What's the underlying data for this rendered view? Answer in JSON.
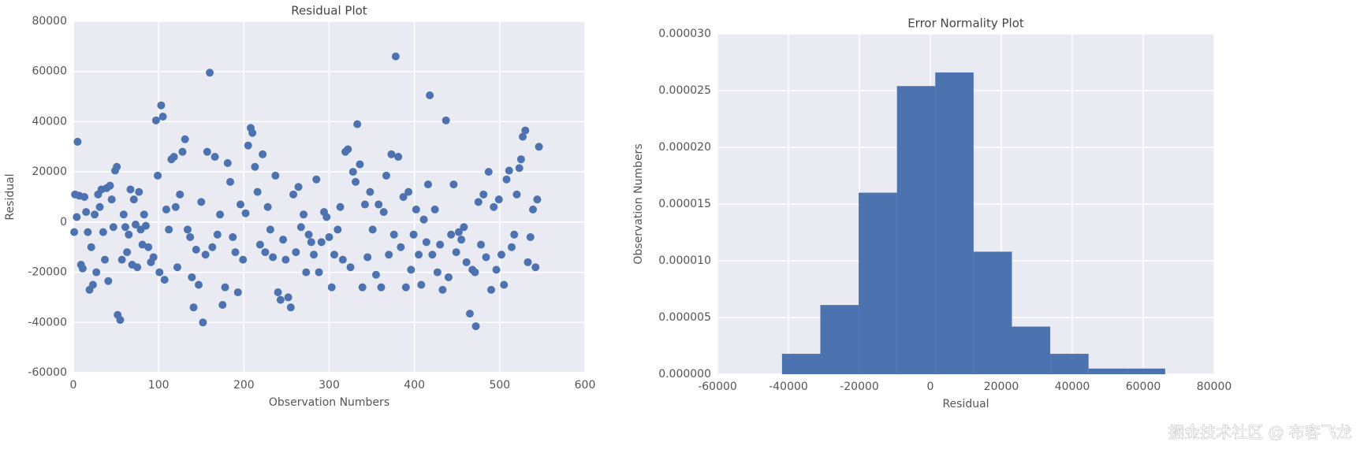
{
  "chart_data": [
    {
      "type": "scatter",
      "title": "Residual Plot",
      "xlabel": "Observation Numbers",
      "ylabel": "Residual",
      "color": "#4c72b0",
      "grid": true,
      "xlim": [
        0,
        600
      ],
      "ylim": [
        -60000,
        80000
      ],
      "xticks": [
        0,
        100,
        200,
        300,
        400,
        500,
        600
      ],
      "yticks": [
        -60000,
        -40000,
        -20000,
        0,
        20000,
        40000,
        60000,
        80000
      ],
      "x": [
        1,
        2,
        4,
        5,
        7,
        9,
        11,
        13,
        15,
        17,
        19,
        21,
        23,
        25,
        27,
        29,
        31,
        33,
        35,
        37,
        39,
        41,
        43,
        45,
        47,
        49,
        51,
        52,
        55,
        57,
        59,
        61,
        63,
        65,
        67,
        69,
        71,
        73,
        75,
        77,
        79,
        81,
        83,
        85,
        88,
        91,
        94,
        97,
        99,
        101,
        103,
        105,
        107,
        109,
        112,
        115,
        118,
        120,
        122,
        125,
        128,
        131,
        134,
        137,
        139,
        141,
        144,
        147,
        150,
        152,
        155,
        157,
        160,
        163,
        166,
        169,
        172,
        175,
        178,
        181,
        184,
        187,
        190,
        193,
        196,
        199,
        202,
        205,
        208,
        210,
        213,
        216,
        219,
        222,
        225,
        228,
        231,
        234,
        237,
        240,
        243,
        246,
        249,
        252,
        255,
        258,
        261,
        264,
        267,
        270,
        273,
        276,
        279,
        282,
        285,
        288,
        291,
        294,
        297,
        300,
        303,
        306,
        310,
        313,
        316,
        319,
        322,
        325,
        328,
        331,
        333,
        336,
        339,
        342,
        345,
        348,
        351,
        355,
        358,
        361,
        364,
        367,
        370,
        373,
        376,
        378,
        381,
        384,
        387,
        390,
        393,
        396,
        399,
        402,
        405,
        408,
        411,
        414,
        416,
        418,
        421,
        424,
        427,
        430,
        433,
        437,
        440,
        443,
        446,
        449,
        452,
        455,
        458,
        461,
        465,
        468,
        471,
        472,
        475,
        478,
        481,
        484,
        487,
        490,
        493,
        496,
        499,
        502,
        505,
        508,
        511,
        514,
        517,
        520,
        523,
        525,
        527,
        530,
        533,
        536,
        539,
        542,
        544,
        546
      ],
      "values": [
        -4000,
        11000,
        2000,
        32000,
        10500,
        -17000,
        -18500,
        10000,
        4000,
        -4000,
        -27000,
        -10000,
        -25000,
        3000,
        -20000,
        11000,
        6000,
        13000,
        -4000,
        -15000,
        13500,
        -23500,
        14500,
        9000,
        -2000,
        20500,
        22000,
        -37000,
        -39000,
        -15000,
        3000,
        -2000,
        -12000,
        -5000,
        13000,
        -17000,
        9000,
        -1000,
        -18000,
        12000,
        -3000,
        -9000,
        3000,
        -1500,
        -10000,
        -16000,
        -14000,
        40500,
        18500,
        -20000,
        46500,
        42000,
        -23000,
        5000,
        -3000,
        25000,
        26000,
        6000,
        -18000,
        11000,
        28000,
        33000,
        -3000,
        -6000,
        -22000,
        -34000,
        -11000,
        -25000,
        8000,
        -40000,
        -13000,
        28000,
        59500,
        -10000,
        26000,
        -5000,
        3000,
        -33000,
        -26000,
        23500,
        16000,
        -6000,
        -12000,
        -28000,
        7000,
        -15000,
        3500,
        30500,
        37500,
        35500,
        22000,
        12000,
        -9000,
        27000,
        -12000,
        6000,
        -3000,
        -14000,
        18500,
        -28000,
        -31000,
        -7000,
        -15000,
        -30000,
        -34000,
        11000,
        -12000,
        14000,
        -2000,
        3000,
        -20000,
        -5000,
        -8000,
        -13000,
        17000,
        -20000,
        -8000,
        4000,
        2000,
        -6000,
        -26000,
        -13000,
        -3000,
        6000,
        -15000,
        28000,
        29000,
        -18000,
        20000,
        16000,
        39000,
        23000,
        -26000,
        7000,
        -14000,
        12000,
        -3000,
        -21000,
        7000,
        -26000,
        4000,
        18500,
        -13000,
        27000,
        -5000,
        66000,
        26000,
        -10000,
        10000,
        -26000,
        12000,
        -19000,
        -5000,
        5000,
        -13000,
        -25000,
        1000,
        -8000,
        15000,
        50500,
        -13000,
        5000,
        -20000,
        -9000,
        -27000,
        40500,
        -22000,
        -5000,
        15000,
        -12000,
        -4000,
        -7000,
        -2000,
        -16000,
        -36500,
        -19000,
        -20000,
        -41500,
        8000,
        -9000,
        11000,
        -14000,
        20000,
        -27000,
        6000,
        -19000,
        9000,
        -13000,
        -25000,
        17000,
        20500,
        -10000,
        -5000,
        11000,
        21500,
        25000,
        34000,
        36500,
        -16000,
        -6000,
        5000,
        -18000,
        9000,
        30000
      ]
    },
    {
      "type": "histogram",
      "title": "Error Normality Plot",
      "xlabel": "Residual",
      "ylabel": "Observation Numbers",
      "color": "#4c72b0",
      "grid": true,
      "xlim": [
        -60000,
        80000
      ],
      "ylim": [
        0,
        3e-05
      ],
      "xticks": [
        -60000,
        -40000,
        -20000,
        0,
        20000,
        40000,
        60000,
        80000
      ],
      "yticks": [
        {
          "value": 0,
          "label": "0.000000"
        },
        {
          "value": 5e-06,
          "label": "0.000005"
        },
        {
          "value": 1e-05,
          "label": "0.000010"
        },
        {
          "value": 1.5e-05,
          "label": "0.000015"
        },
        {
          "value": 2e-05,
          "label": "0.000020"
        },
        {
          "value": 2.5e-05,
          "label": "0.000025"
        },
        {
          "value": 3e-05,
          "label": "0.000030"
        }
      ],
      "bins": [
        -41800,
        -31000,
        -20200,
        -9400,
        1400,
        12200,
        23000,
        33800,
        44600,
        55400,
        66200
      ],
      "values": [
        1.8e-06,
        6.1e-06,
        1.6e-05,
        2.54e-05,
        2.66e-05,
        1.08e-05,
        4.2e-06,
        1.8e-06,
        5e-07,
        5e-07
      ]
    }
  ],
  "watermark": "掘金技术社区 @ 布客飞龙"
}
